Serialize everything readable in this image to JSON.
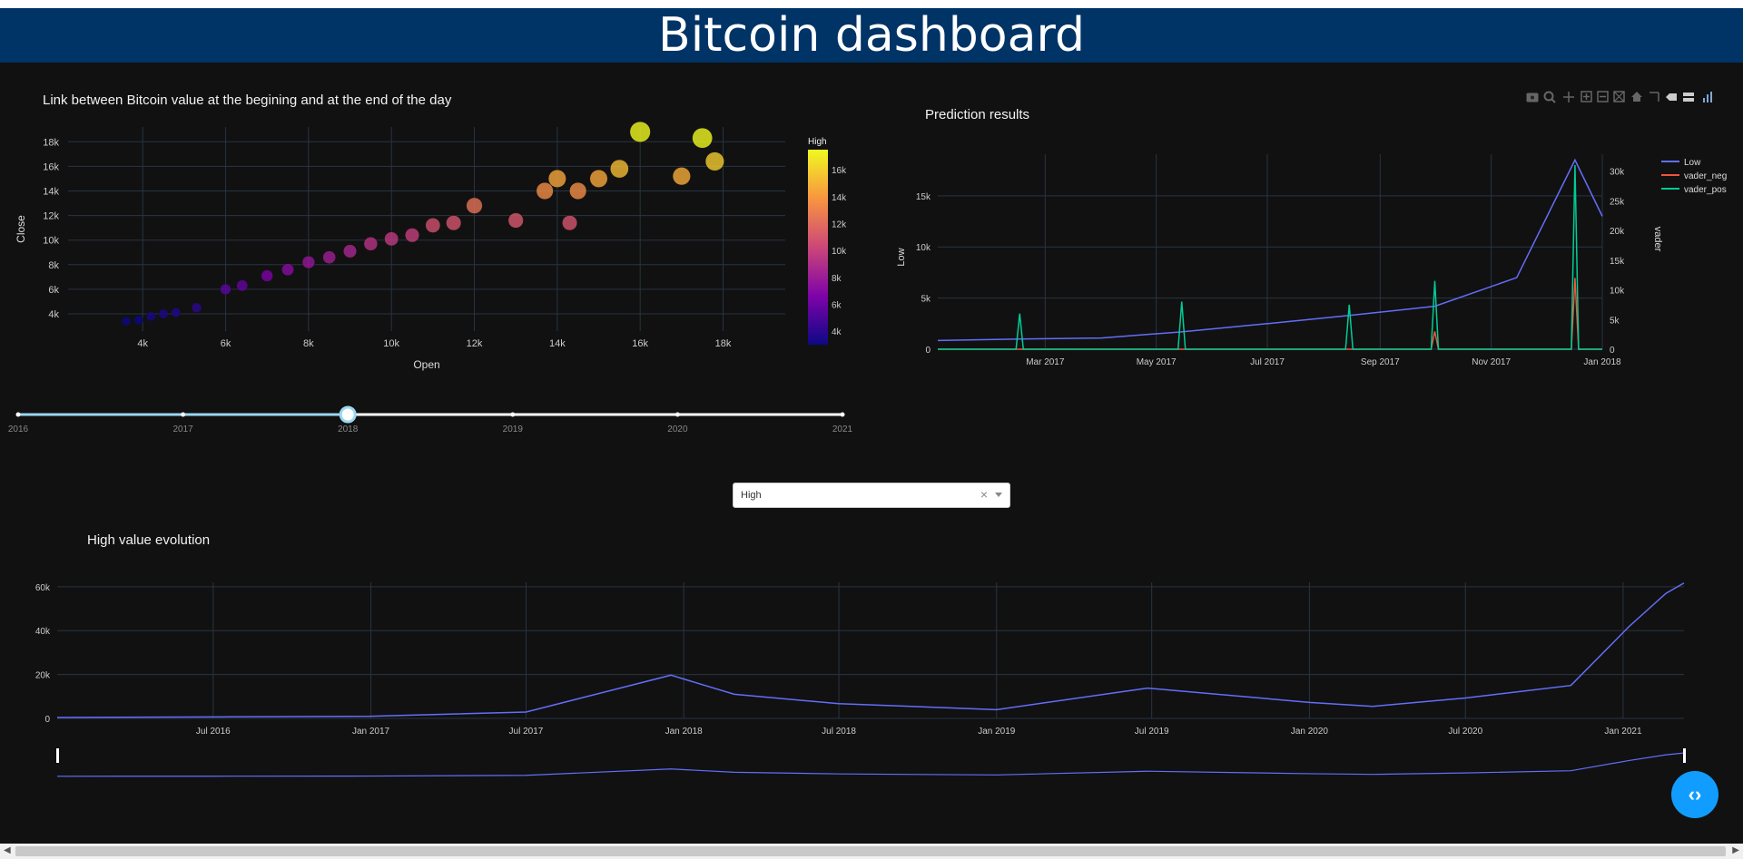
{
  "header": {
    "title": "Bitcoin dashboard"
  },
  "scatter": {
    "title": "Link between Bitcoin value at the begining and at the end of the day",
    "xlabel": "Open",
    "ylabel": "Close",
    "x_ticks": [
      "4k",
      "6k",
      "8k",
      "10k",
      "12k",
      "14k",
      "16k",
      "18k"
    ],
    "y_ticks": [
      "4k",
      "6k",
      "8k",
      "10k",
      "12k",
      "14k",
      "16k",
      "18k"
    ],
    "colorbar": {
      "title": "High",
      "ticks": [
        "4k",
        "6k",
        "8k",
        "10k",
        "12k",
        "14k",
        "16k"
      ]
    }
  },
  "slider": {
    "labels": [
      "2016",
      "2017",
      "2018",
      "2019",
      "2020",
      "2021"
    ],
    "selected": "2018"
  },
  "prediction": {
    "title": "Prediction results",
    "ylabel_left": "Low",
    "ylabel_right": "vader",
    "x_ticks": [
      "Mar 2017",
      "May 2017",
      "Jul 2017",
      "Sep 2017",
      "Nov 2017",
      "Jan 2018"
    ],
    "y_left_ticks": [
      "0",
      "5k",
      "10k",
      "15k"
    ],
    "y_right_ticks": [
      "0",
      "5k",
      "10k",
      "15k",
      "20k",
      "25k",
      "30k"
    ],
    "legend": [
      {
        "name": "Low",
        "color": "#636efa"
      },
      {
        "name": "vader_neg",
        "color": "#ef553b"
      },
      {
        "name": "vader_pos",
        "color": "#00cc96"
      }
    ]
  },
  "dropdown": {
    "value": "High",
    "clear": "×"
  },
  "evolution": {
    "title": "High value evolution",
    "x_ticks": [
      "Jul 2016",
      "Jan 2017",
      "Jul 2017",
      "Jan 2018",
      "Jul 2018",
      "Jan 2019",
      "Jul 2019",
      "Jan 2020",
      "Jul 2020",
      "Jan 2021"
    ],
    "y_ticks": [
      "0",
      "20k",
      "40k",
      "60k"
    ]
  },
  "fab": {
    "label": "‹›"
  },
  "chart_data": [
    {
      "type": "scatter",
      "title": "Link between Bitcoin value at the begining and at the end of the day",
      "xlabel": "Open",
      "ylabel": "Close",
      "xlim": [
        2200,
        19500
      ],
      "ylim": [
        2600,
        19200
      ],
      "color_by": "High",
      "colorscale": [
        "#0d0887",
        "#7e03a8",
        "#cc4778",
        "#f89540",
        "#f0f921"
      ],
      "points": [
        [
          3600,
          3400
        ],
        [
          3900,
          3500
        ],
        [
          4200,
          3800
        ],
        [
          4500,
          4000
        ],
        [
          4800,
          4100
        ],
        [
          5300,
          4500
        ],
        [
          6000,
          6000
        ],
        [
          6400,
          6300
        ],
        [
          7000,
          7100
        ],
        [
          7500,
          7600
        ],
        [
          8000,
          8200
        ],
        [
          8500,
          8600
        ],
        [
          9000,
          9100
        ],
        [
          9500,
          9700
        ],
        [
          10000,
          10100
        ],
        [
          10500,
          10400
        ],
        [
          11000,
          11200
        ],
        [
          11500,
          11400
        ],
        [
          12000,
          12800
        ],
        [
          13000,
          11600
        ],
        [
          13700,
          14000
        ],
        [
          14000,
          15000
        ],
        [
          14500,
          14000
        ],
        [
          15000,
          15000
        ],
        [
          15500,
          15800
        ],
        [
          16000,
          18800
        ],
        [
          17000,
          15200
        ],
        [
          17500,
          18300
        ],
        [
          17800,
          16400
        ],
        [
          14300,
          11400
        ]
      ]
    },
    {
      "type": "line",
      "title": "Prediction results",
      "x": [
        "2017-01-01",
        "2017-02-15",
        "2017-04-01",
        "2017-05-15",
        "2017-07-01",
        "2017-08-15",
        "2017-10-01",
        "2017-11-15",
        "2017-12-17",
        "2018-01-01"
      ],
      "series": [
        {
          "name": "Low",
          "axis": "left",
          "values": [
            850,
            1000,
            1100,
            1700,
            2500,
            3300,
            4200,
            7000,
            18500,
            13000
          ]
        },
        {
          "name": "vader_neg",
          "axis": "right",
          "values": [
            0,
            0,
            0,
            0,
            0,
            0,
            3000,
            0,
            12000,
            0
          ]
        },
        {
          "name": "vader_pos",
          "axis": "right",
          "values": [
            0,
            6000,
            0,
            8000,
            0,
            7500,
            11500,
            0,
            31000,
            0
          ]
        }
      ],
      "ylim_left": [
        0,
        18000
      ],
      "ylim_right": [
        0,
        31000
      ]
    },
    {
      "type": "line",
      "title": "High value evolution",
      "x": [
        "2016-01-01",
        "2016-07-01",
        "2017-01-01",
        "2017-07-01",
        "2017-12-17",
        "2018-03-01",
        "2018-07-01",
        "2019-01-01",
        "2019-06-26",
        "2020-01-01",
        "2020-03-15",
        "2020-07-01",
        "2020-11-01",
        "2021-01-08",
        "2021-02-20",
        "2021-03-13"
      ],
      "series": [
        {
          "name": "High",
          "values": [
            430,
            670,
            1000,
            2900,
            19700,
            11000,
            6700,
            4000,
            13800,
            7300,
            5500,
            9300,
            15000,
            41900,
            57000,
            61700
          ]
        }
      ],
      "ylim": [
        0,
        62000
      ]
    }
  ]
}
